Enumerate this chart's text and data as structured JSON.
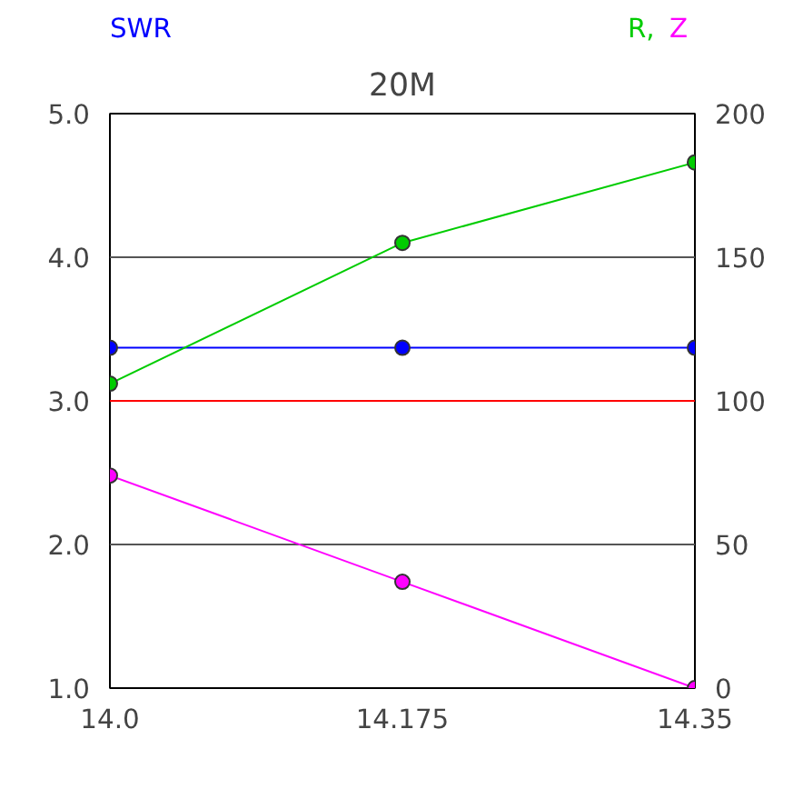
{
  "chart_data": {
    "type": "line",
    "title": "20M",
    "ylabel": "SWR",
    "y2label": "R, Z",
    "x": [
      14.0,
      14.175,
      14.35
    ],
    "series": [
      {
        "color": "#0000ff",
        "values": [
          3.37,
          3.37,
          3.37
        ]
      },
      {
        "color": "#00cc00",
        "values": [
          106,
          155,
          183
        ],
        "axis": "y2"
      },
      {
        "color": "#ff00ff",
        "values": [
          74,
          37,
          0
        ],
        "axis": "y2"
      }
    ],
    "xlim": [
      14.0,
      14.35
    ],
    "xticks": [
      {
        "value": 14.0,
        "label": "14.0"
      },
      14.175,
      14.35
    ],
    "ylim": [
      1.0,
      5.0
    ],
    "yticks": [
      {
        "value": 1.0,
        "label": "1.0"
      },
      {
        "value": 2.0,
        "label": "2.0"
      },
      {
        "value": 3.0,
        "label": "3.0"
      },
      {
        "value": 4.0,
        "label": "4.0"
      },
      {
        "value": 5.0,
        "label": "5.0"
      }
    ],
    "y2lim": [
      0,
      200
    ],
    "y2ticks": [
      0,
      50,
      100,
      150,
      200
    ],
    "ref_lines": [
      {
        "axis": "y",
        "value": 3.0,
        "color": "#ff0000"
      }
    ],
    "grid": "y",
    "marker": "circle",
    "line_style": "solid"
  }
}
